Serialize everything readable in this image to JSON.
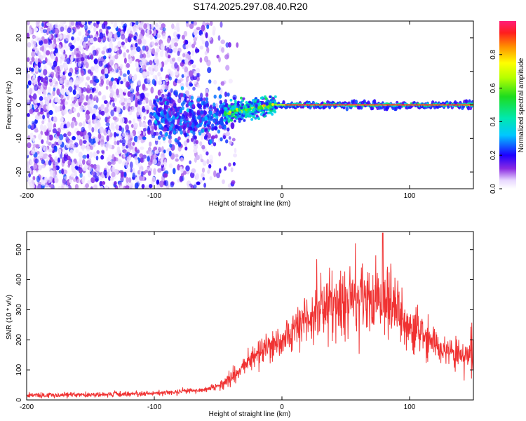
{
  "figure": {
    "title": "S174.2025.297.08.40.R20"
  },
  "chart_data": [
    {
      "type": "heatmap",
      "name": "spectrogram",
      "xlabel": "Height of straight line (km)",
      "ylabel": "Frequency (Hz)",
      "xlim": [
        -200,
        150
      ],
      "ylim": [
        -25,
        25
      ],
      "xticks": [
        -200,
        -100,
        0,
        100
      ],
      "yticks": [
        -20,
        -10,
        0,
        10,
        20
      ],
      "colorbar": {
        "label": "Normalized spectral amplitude",
        "range": [
          0,
          1
        ],
        "ticks": [
          0.0,
          0.2,
          0.4,
          0.6,
          0.8
        ],
        "tick_labels": [
          "0.0",
          "0.2",
          "0.4",
          "0.6",
          "0.8"
        ]
      },
      "description_of_data": {
        "noise_region_km": [
          -200,
          -45
        ],
        "transition_region_km": [
          -45,
          -5
        ],
        "signal_line_frequency_hz": 0,
        "signal_line_region_km": [
          -5,
          150
        ],
        "signal_peak_amplitude": 0.95,
        "blob_cluster_center_km": -70,
        "blob_cluster_frequency_hz": -4
      }
    },
    {
      "type": "line",
      "name": "snr",
      "xlabel": "Height of straight line (km)",
      "ylabel": "SNR (10 * v/v)",
      "xlim": [
        -200,
        150
      ],
      "ylim": [
        0,
        560
      ],
      "xticks": [
        -200,
        -100,
        0,
        100
      ],
      "yticks": [
        0,
        100,
        200,
        300,
        400,
        500
      ],
      "series": [
        {
          "name": "SNR",
          "color": "#f03232",
          "envelope_x": [
            -200,
            -150,
            -100,
            -80,
            -60,
            -45,
            -30,
            -15,
            0,
            20,
            40,
            60,
            75,
            80,
            90,
            100,
            115,
            130,
            150
          ],
          "envelope_mean": [
            15,
            18,
            22,
            28,
            35,
            55,
            120,
            170,
            200,
            270,
            320,
            330,
            340,
            330,
            290,
            240,
            200,
            160,
            140
          ],
          "peak": {
            "x": 79,
            "y": 555
          }
        }
      ]
    }
  ]
}
